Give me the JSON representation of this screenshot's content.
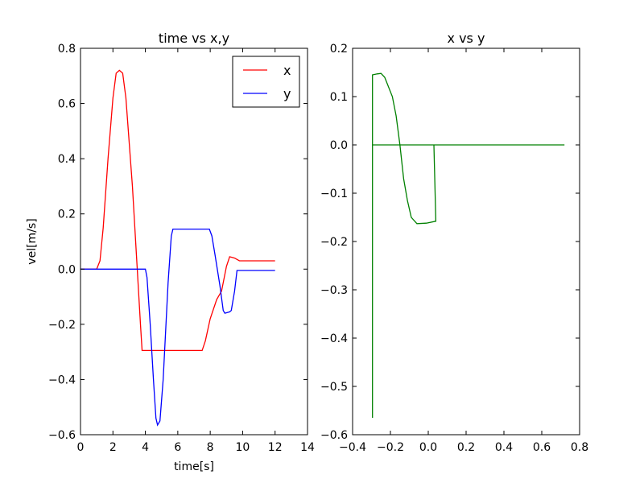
{
  "chart_data": [
    {
      "type": "line",
      "title": "time vs x,y",
      "xlabel": "time[s]",
      "ylabel": "vel[m/s]",
      "xlim": [
        0,
        14
      ],
      "ylim": [
        -0.6,
        0.8
      ],
      "xticks": [
        "0",
        "2",
        "4",
        "6",
        "8",
        "10",
        "12",
        "14"
      ],
      "yticks": [
        "−0.6",
        "−0.4",
        "−0.2",
        "0.0",
        "0.2",
        "0.4",
        "0.6",
        "0.8"
      ],
      "legend": {
        "position": "upper right",
        "entries": [
          "x",
          "y"
        ]
      },
      "grid": false,
      "series": [
        {
          "name": "x",
          "color": "#ff0000",
          "points": [
            [
              0,
              0
            ],
            [
              1.0,
              0
            ],
            [
              1.2,
              0.03
            ],
            [
              1.4,
              0.15
            ],
            [
              1.7,
              0.4
            ],
            [
              2.0,
              0.62
            ],
            [
              2.2,
              0.71
            ],
            [
              2.4,
              0.72
            ],
            [
              2.6,
              0.71
            ],
            [
              2.8,
              0.62
            ],
            [
              3.2,
              0.3
            ],
            [
              3.5,
              0.0
            ],
            [
              3.7,
              -0.2
            ],
            [
              3.8,
              -0.295
            ],
            [
              7.5,
              -0.295
            ],
            [
              7.7,
              -0.26
            ],
            [
              8.0,
              -0.18
            ],
            [
              8.4,
              -0.11
            ],
            [
              8.7,
              -0.08
            ],
            [
              9.0,
              0.01
            ],
            [
              9.2,
              0.045
            ],
            [
              9.5,
              0.04
            ],
            [
              9.8,
              0.03
            ],
            [
              12.0,
              0.03
            ]
          ]
        },
        {
          "name": "y",
          "color": "#0000ff",
          "points": [
            [
              0,
              0
            ],
            [
              4.0,
              0
            ],
            [
              4.1,
              -0.03
            ],
            [
              4.3,
              -0.2
            ],
            [
              4.5,
              -0.4
            ],
            [
              4.65,
              -0.54
            ],
            [
              4.75,
              -0.565
            ],
            [
              4.9,
              -0.55
            ],
            [
              5.1,
              -0.4
            ],
            [
              5.4,
              -0.05
            ],
            [
              5.6,
              0.12
            ],
            [
              5.7,
              0.145
            ],
            [
              7.8,
              0.145
            ],
            [
              7.95,
              0.145
            ],
            [
              8.1,
              0.12
            ],
            [
              8.3,
              0.05
            ],
            [
              8.6,
              -0.06
            ],
            [
              8.8,
              -0.15
            ],
            [
              8.9,
              -0.16
            ],
            [
              9.2,
              -0.155
            ],
            [
              9.3,
              -0.15
            ],
            [
              9.5,
              -0.08
            ],
            [
              9.65,
              -0.005
            ],
            [
              12.0,
              -0.005
            ]
          ]
        }
      ]
    },
    {
      "type": "line",
      "title": "x vs y",
      "xlabel": "",
      "ylabel": "",
      "xlim": [
        -0.4,
        0.8
      ],
      "ylim": [
        -0.6,
        0.2
      ],
      "xticks": [
        "−0.4",
        "−0.2",
        "0.0",
        "0.2",
        "0.4",
        "0.6",
        "0.8"
      ],
      "yticks": [
        "−0.6",
        "−0.5",
        "−0.4",
        "−0.3",
        "−0.2",
        "−0.1",
        "0.0",
        "0.1",
        "0.2"
      ],
      "grid": false,
      "series": [
        {
          "name": "x vs y",
          "color": "#008000",
          "points": [
            [
              0.0,
              0
            ],
            [
              0.72,
              0
            ],
            [
              0.72,
              0
            ],
            [
              -0.295,
              0
            ],
            [
              -0.295,
              -0.565
            ],
            [
              -0.295,
              0.145
            ],
            [
              -0.27,
              0.147
            ],
            [
              -0.25,
              0.148
            ],
            [
              -0.23,
              0.14
            ],
            [
              -0.19,
              0.1
            ],
            [
              -0.17,
              0.06
            ],
            [
              -0.15,
              0.0
            ],
            [
              -0.13,
              -0.07
            ],
            [
              -0.11,
              -0.115
            ],
            [
              -0.09,
              -0.15
            ],
            [
              -0.06,
              -0.163
            ],
            [
              -0.01,
              -0.162
            ],
            [
              0.04,
              -0.158
            ],
            [
              0.03,
              0.0
            ],
            [
              0.0,
              0.0
            ]
          ]
        }
      ]
    }
  ]
}
